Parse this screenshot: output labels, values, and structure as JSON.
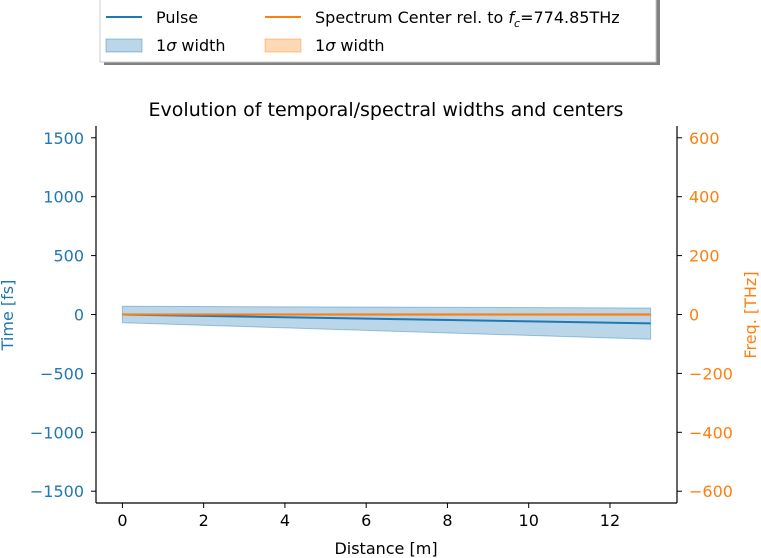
{
  "chart_data": {
    "type": "line",
    "title": "Evolution of temporal/spectral widths and centers",
    "xlabel": "Distance [m]",
    "ylabel_left": "Time [fs]",
    "ylabel_right": "Freq. [THz]",
    "xlim": [
      -0.65,
      13.65
    ],
    "ylim_left": [
      -1600,
      1600
    ],
    "ylim_right": [
      -640,
      640
    ],
    "x_ticks": [
      0,
      2,
      4,
      6,
      8,
      10,
      12
    ],
    "y_ticks_left": [
      -1500,
      -1000,
      -500,
      0,
      500,
      1000,
      1500
    ],
    "y_ticks_right": [
      -600,
      -400,
      -200,
      0,
      200,
      400,
      600
    ],
    "grid": false,
    "legend": {
      "placement": "top, above plot",
      "entries": [
        {
          "label": "Pulse",
          "kind": "line",
          "color": "#1f77b4"
        },
        {
          "label_prefix": "Spectrum Center rel. to ",
          "label_math": "f",
          "label_sub": "c",
          "label_suffix": "=774.85THz",
          "kind": "line",
          "color": "#ff7f0e"
        },
        {
          "label_prefix": "1",
          "label_sigma": "σ",
          "label_suffix": " width",
          "kind": "band",
          "color": "#1f77b4"
        },
        {
          "label_prefix": "1",
          "label_sigma": "σ",
          "label_suffix": " width",
          "kind": "band",
          "color": "#ff7f0e"
        }
      ]
    },
    "colors": {
      "pulse": "#1f77b4",
      "spectrum": "#ff7f0e"
    },
    "series": [
      {
        "name": "Pulse",
        "axis": "left",
        "x": [
          0,
          13
        ],
        "y": [
          0,
          -75
        ],
        "band_lower": [
          -70,
          -210
        ],
        "band_upper": [
          70,
          55
        ]
      },
      {
        "name": "Spectrum Center rel. to fc=774.85THz",
        "axis": "right",
        "x": [
          0,
          13
        ],
        "y": [
          0,
          0
        ],
        "band_lower": [
          -2,
          -3
        ],
        "band_upper": [
          2,
          3
        ]
      }
    ]
  }
}
